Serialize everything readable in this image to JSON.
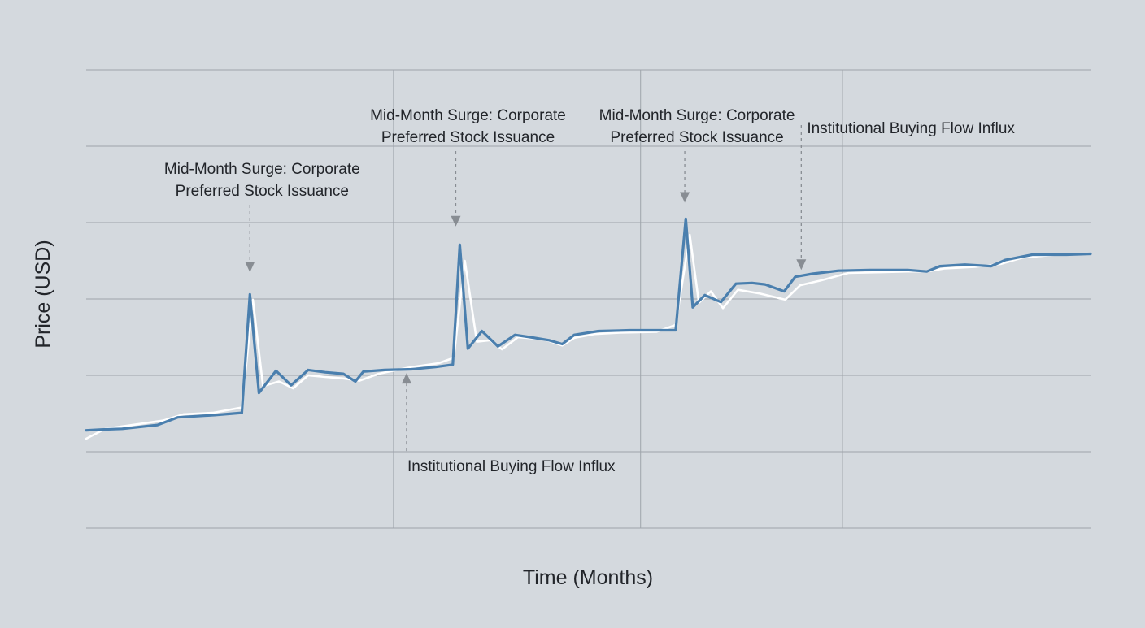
{
  "chart_data": {
    "type": "line",
    "title": "",
    "xlabel": "Time (Months)",
    "ylabel": "Price (USD)",
    "xlim": [
      0,
      100
    ],
    "ylim": [
      0,
      6
    ],
    "grid": true,
    "legend": "none",
    "colors": {
      "primary": "#4a7fae",
      "shadow": "#ffffff",
      "grid": "#9ea4ab",
      "annotation": "#888d93"
    },
    "series": [
      {
        "role": "primary",
        "points": [
          [
            0,
            1.28
          ],
          [
            1.5,
            1.29
          ],
          [
            3.6,
            1.3
          ],
          [
            7.1,
            1.35
          ],
          [
            9.1,
            1.45
          ],
          [
            12.8,
            1.48
          ],
          [
            15.5,
            1.51
          ],
          [
            16.3,
            3.06
          ],
          [
            17.2,
            1.77
          ],
          [
            18.9,
            2.06
          ],
          [
            20.4,
            1.87
          ],
          [
            22.1,
            2.07
          ],
          [
            23.8,
            2.04
          ],
          [
            25.6,
            2.02
          ],
          [
            26.8,
            1.92
          ],
          [
            27.6,
            2.05
          ],
          [
            29.7,
            2.07
          ],
          [
            32.4,
            2.08
          ],
          [
            34.8,
            2.11
          ],
          [
            36.5,
            2.14
          ],
          [
            37.2,
            3.71
          ],
          [
            38.0,
            2.35
          ],
          [
            39.4,
            2.58
          ],
          [
            41.0,
            2.38
          ],
          [
            42.7,
            2.53
          ],
          [
            44.2,
            2.5
          ],
          [
            46.1,
            2.46
          ],
          [
            47.4,
            2.41
          ],
          [
            48.6,
            2.53
          ],
          [
            51.0,
            2.58
          ],
          [
            54.1,
            2.59
          ],
          [
            57.3,
            2.59
          ],
          [
            58.7,
            2.59
          ],
          [
            59.7,
            4.05
          ],
          [
            60.4,
            2.89
          ],
          [
            61.6,
            3.05
          ],
          [
            63.2,
            2.96
          ],
          [
            64.7,
            3.2
          ],
          [
            66.3,
            3.21
          ],
          [
            67.6,
            3.19
          ],
          [
            69.5,
            3.1
          ],
          [
            70.6,
            3.29
          ],
          [
            72.3,
            3.33
          ],
          [
            74.9,
            3.37
          ],
          [
            78.0,
            3.38
          ],
          [
            81.8,
            3.38
          ],
          [
            83.7,
            3.36
          ],
          [
            85.0,
            3.43
          ],
          [
            87.5,
            3.45
          ],
          [
            90.1,
            3.43
          ],
          [
            91.5,
            3.51
          ],
          [
            94.2,
            3.58
          ],
          [
            97.6,
            3.58
          ],
          [
            100,
            3.59
          ]
        ]
      },
      {
        "role": "shadow",
        "points": [
          [
            0,
            1.17
          ],
          [
            1.9,
            1.3
          ],
          [
            5.1,
            1.36
          ],
          [
            7.7,
            1.41
          ],
          [
            9.7,
            1.49
          ],
          [
            12.6,
            1.51
          ],
          [
            15.5,
            1.58
          ],
          [
            16.6,
            2.99
          ],
          [
            17.6,
            1.86
          ],
          [
            19.2,
            1.92
          ],
          [
            20.6,
            1.83
          ],
          [
            22.1,
            2.0
          ],
          [
            23.8,
            1.98
          ],
          [
            25.6,
            1.96
          ],
          [
            27.2,
            1.93
          ],
          [
            29.1,
            2.02
          ],
          [
            32.0,
            2.1
          ],
          [
            35.1,
            2.16
          ],
          [
            36.6,
            2.23
          ],
          [
            37.7,
            3.5
          ],
          [
            38.9,
            2.44
          ],
          [
            40.2,
            2.46
          ],
          [
            41.4,
            2.34
          ],
          [
            43.0,
            2.5
          ],
          [
            45.6,
            2.47
          ],
          [
            47.4,
            2.39
          ],
          [
            48.6,
            2.49
          ],
          [
            50.6,
            2.54
          ],
          [
            53.2,
            2.56
          ],
          [
            56.8,
            2.57
          ],
          [
            58.7,
            2.66
          ],
          [
            60.1,
            3.84
          ],
          [
            61.0,
            2.95
          ],
          [
            62.2,
            3.1
          ],
          [
            63.4,
            2.88
          ],
          [
            64.9,
            3.12
          ],
          [
            67.1,
            3.07
          ],
          [
            69.6,
            2.99
          ],
          [
            71.1,
            3.18
          ],
          [
            73.1,
            3.24
          ],
          [
            75.9,
            3.34
          ],
          [
            79.1,
            3.35
          ],
          [
            81.8,
            3.36
          ],
          [
            83.7,
            3.36
          ],
          [
            85.5,
            3.4
          ],
          [
            88.5,
            3.42
          ],
          [
            91.1,
            3.46
          ],
          [
            93.2,
            3.54
          ],
          [
            96.6,
            3.58
          ],
          [
            100,
            3.59
          ]
        ]
      }
    ],
    "annotations": [
      {
        "lines": [
          "Mid-Month Surge: Corporate",
          "Preferred Stock Issuance"
        ],
        "target": [
          16.3,
          3.35
        ],
        "text_pos": "above"
      },
      {
        "lines": [
          "Mid-Month Surge: Corporate",
          "Preferred Stock Issuance"
        ],
        "target": [
          36.8,
          3.95
        ],
        "text_pos": "above"
      },
      {
        "lines": [
          "Institutional Buying Flow Influx"
        ],
        "target": [
          31.9,
          2.03
        ],
        "text_pos": "below"
      },
      {
        "lines": [
          "Mid-Month Surge: Corporate",
          "Preferred Stock Issuance"
        ],
        "target": [
          59.6,
          4.26
        ],
        "text_pos": "above"
      },
      {
        "lines": [
          "Institutional Buying Flow Influx"
        ],
        "target": [
          71.2,
          3.38
        ],
        "text_pos": "above"
      }
    ]
  }
}
